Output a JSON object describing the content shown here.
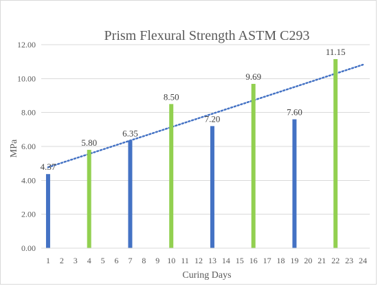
{
  "chart_data": {
    "type": "bar",
    "title": "Prism Flexural Strength ASTM C293",
    "xlabel": "Curing Days",
    "ylabel": "MPa",
    "categories": [
      "1",
      "2",
      "3",
      "4",
      "5",
      "6",
      "7",
      "8",
      "9",
      "10",
      "11",
      "12",
      "13",
      "14",
      "15",
      "16",
      "17",
      "18",
      "19",
      "20",
      "21",
      "22",
      "23",
      "24"
    ],
    "values": [
      4.37,
      null,
      null,
      5.8,
      null,
      null,
      6.35,
      null,
      null,
      8.5,
      null,
      null,
      7.2,
      null,
      null,
      9.69,
      null,
      null,
      7.6,
      null,
      null,
      11.15,
      null,
      null
    ],
    "data_labels": [
      "4.37",
      "",
      "",
      "5.80",
      "",
      "",
      "6.35",
      "",
      "",
      "8.50",
      "",
      "",
      "7.20",
      "",
      "",
      "9.69",
      "",
      "",
      "7.60",
      "",
      "",
      "11.15",
      "",
      ""
    ],
    "bar_colors": [
      "#4472c4",
      "",
      "",
      "#92d050",
      "",
      "",
      "#4472c4",
      "",
      "",
      "#92d050",
      "",
      "",
      "#4472c4",
      "",
      "",
      "#92d050",
      "",
      "",
      "#4472c4",
      "",
      "",
      "#92d050",
      "",
      ""
    ],
    "ylim": [
      0,
      12
    ],
    "yticks": [
      "0.00",
      "2.00",
      "4.00",
      "6.00",
      "8.00",
      "10.00",
      "12.00"
    ],
    "grid": true,
    "trendline": {
      "type": "linear",
      "style": "dotted",
      "color": "#4472c4",
      "start": {
        "x": 1,
        "y": 4.77
      },
      "end": {
        "x": 24,
        "y": 10.82
      }
    }
  }
}
